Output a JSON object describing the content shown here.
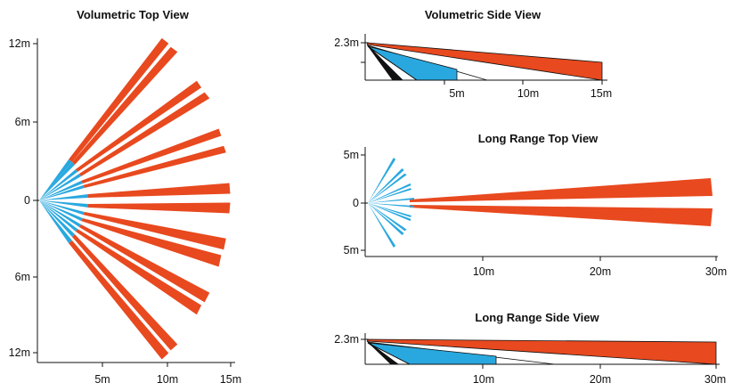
{
  "colors": {
    "long_beam": "#e8491f",
    "short_beam": "#29a8df",
    "creep": "#111111",
    "axis": "#111111",
    "background": "#ffffff"
  },
  "panels": {
    "volumetric_top": {
      "title": "Volumetric Top View",
      "y_ticks": [
        "12m",
        "6m",
        "0",
        "6m",
        "12m"
      ],
      "x_ticks": [
        "5m",
        "10m",
        "15m"
      ]
    },
    "volumetric_side": {
      "title": "Volumetric Side View",
      "y_ticks": [
        "2.3m"
      ],
      "x_ticks": [
        "5m",
        "10m",
        "15m"
      ]
    },
    "long_range_top": {
      "title": "Long Range Top View",
      "y_ticks": [
        "5m",
        "0",
        "5m"
      ],
      "x_ticks": [
        "10m",
        "20m",
        "30m"
      ]
    },
    "long_range_side": {
      "title": "Long Range Side View",
      "y_ticks": [
        "2.3m"
      ],
      "x_ticks": [
        "10m",
        "20m",
        "30m"
      ]
    }
  }
}
